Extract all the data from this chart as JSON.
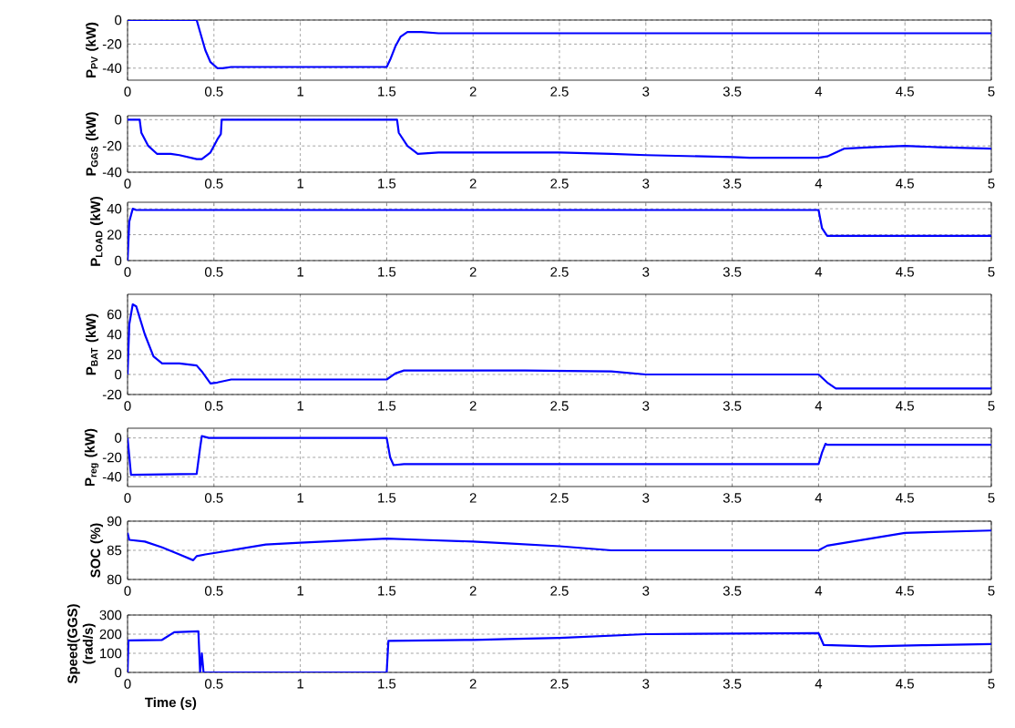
{
  "chart_data": [
    {
      "type": "line",
      "ylabel": "P$_{PV}$ (kW)",
      "x": [
        0,
        0.4,
        0.42,
        0.45,
        0.48,
        0.52,
        0.55,
        0.6,
        1.0,
        1.5,
        1.52,
        1.55,
        1.58,
        1.62,
        1.7,
        1.8,
        2,
        5
      ],
      "series": [
        {
          "color": "#0000ff",
          "values": [
            0,
            0,
            -10,
            -25,
            -35,
            -40,
            -40,
            -39,
            -39,
            -39,
            -33,
            -22,
            -14,
            -10,
            -10,
            -11,
            -11,
            -11
          ]
        }
      ],
      "xlim": [
        0,
        5
      ],
      "xticks": [
        0,
        0.5,
        1,
        1.5,
        2,
        2.5,
        3,
        3.5,
        4,
        4.5,
        5
      ],
      "ylim": [
        -50,
        0
      ],
      "yticks": [
        -40,
        -20,
        0
      ],
      "grid": true,
      "line_style": "solid"
    },
    {
      "type": "line",
      "ylabel": "P$_{GGS}$ (kW)",
      "x": [
        0,
        0.07,
        0.08,
        0.12,
        0.17,
        0.25,
        0.3,
        0.4,
        0.43,
        0.48,
        0.52,
        0.54,
        0.545,
        1.56,
        1.57,
        1.62,
        1.68,
        1.8,
        2.2,
        2.5,
        2.8,
        3,
        3.5,
        3.6,
        4,
        4.05,
        4.15,
        4.3,
        4.5,
        4.7,
        5
      ],
      "series": [
        {
          "color": "#0000ff",
          "values": [
            0,
            0,
            -10,
            -20,
            -26,
            -26,
            -27,
            -30,
            -30,
            -25,
            -15,
            -11,
            0,
            0,
            -10,
            -20,
            -26,
            -25,
            -25,
            -25,
            -26,
            -27,
            -28.5,
            -29,
            -29,
            -28,
            -22,
            -21,
            -20,
            -21,
            -22
          ]
        }
      ],
      "xlim": [
        0,
        5
      ],
      "xticks": [
        0,
        0.5,
        1,
        1.5,
        2,
        2.5,
        3,
        3.5,
        4,
        4.5,
        5
      ],
      "ylim": [
        -40,
        3
      ],
      "yticks": [
        -40,
        -20,
        0
      ],
      "grid": true,
      "line_style": "solid"
    },
    {
      "type": "line",
      "ylabel": "P$_{LOAD}$ (kW)",
      "x": [
        0,
        0.01,
        0.03,
        0.05,
        4,
        4.02,
        4.05,
        5
      ],
      "series": [
        {
          "color": "#0000ff",
          "values": [
            0,
            30,
            40,
            39,
            39,
            25,
            19,
            19
          ]
        }
      ],
      "xlim": [
        0,
        5
      ],
      "xticks": [
        0,
        0.5,
        1,
        1.5,
        2,
        2.5,
        3,
        3.5,
        4,
        4.5,
        5
      ],
      "ylim": [
        0,
        45
      ],
      "yticks": [
        0,
        20,
        40
      ],
      "grid": true,
      "line_style": "solid"
    },
    {
      "type": "line",
      "ylabel": "P$_{BAT}$ (kW)",
      "x": [
        0,
        0.01,
        0.03,
        0.05,
        0.1,
        0.15,
        0.2,
        0.3,
        0.4,
        0.43,
        0.48,
        0.52,
        0.6,
        0.7,
        1.5,
        1.55,
        1.6,
        2.3,
        2.8,
        3,
        4,
        4.05,
        4.1,
        4.5,
        5
      ],
      "series": [
        {
          "color": "#0000ff",
          "values": [
            0,
            50,
            70,
            68,
            40,
            18,
            11,
            11,
            9,
            3,
            -9,
            -8,
            -5,
            -5,
            -5,
            1,
            4,
            4,
            3,
            0,
            0,
            -8,
            -14,
            -14,
            -14
          ]
        }
      ],
      "xlim": [
        0,
        5
      ],
      "xticks": [
        0,
        0.5,
        1,
        1.5,
        2,
        2.5,
        3,
        3.5,
        4,
        4.5,
        5
      ],
      "ylim": [
        -20,
        80
      ],
      "yticks": [
        -20,
        0,
        20,
        40,
        60
      ],
      "grid": true,
      "line_style": "solid"
    },
    {
      "type": "line",
      "ylabel": "P$_{reg}$ (kW)",
      "x": [
        0,
        0.02,
        0.4,
        0.42,
        0.43,
        0.47,
        1.5,
        1.52,
        1.54,
        1.6,
        4,
        4.02,
        4.04,
        4.05,
        5
      ],
      "series": [
        {
          "color": "#0000ff",
          "values": [
            0,
            -38,
            -37,
            -10,
            2,
            0,
            0,
            -20,
            -28,
            -27,
            -27,
            -15,
            -6,
            -7,
            -7
          ]
        }
      ],
      "xlim": [
        0,
        5
      ],
      "xticks": [
        0,
        0.5,
        1,
        1.5,
        2,
        2.5,
        3,
        3.5,
        4,
        4.5,
        5
      ],
      "ylim": [
        -50,
        10
      ],
      "yticks": [
        -40,
        -20,
        0
      ],
      "grid": true,
      "line_style": "solid"
    },
    {
      "type": "line",
      "ylabel": "SOC (%)",
      "x": [
        0,
        0.01,
        0.1,
        0.2,
        0.3,
        0.38,
        0.4,
        0.45,
        0.6,
        0.8,
        1.0,
        1.5,
        1.7,
        2,
        2.2,
        2.5,
        2.8,
        3,
        4,
        4.05,
        4.5,
        5
      ],
      "series": [
        {
          "color": "#0000ff",
          "values": [
            88,
            86.8,
            86.5,
            85.5,
            84.3,
            83.3,
            84,
            84.3,
            85,
            86,
            86.3,
            87,
            86.8,
            86.5,
            86.2,
            85.7,
            85,
            85,
            85,
            85.8,
            88,
            88.4
          ]
        }
      ],
      "xlim": [
        0,
        5
      ],
      "xticks": [
        0,
        0.5,
        1,
        1.5,
        2,
        2.5,
        3,
        3.5,
        4,
        4.5,
        5
      ],
      "ylim": [
        80,
        90
      ],
      "yticks": [
        80,
        85,
        90
      ],
      "grid": true,
      "line_style": "solid"
    },
    {
      "type": "line",
      "ylabel": "Speed(GGS) (rad/s)",
      "xlabel": "Time (s)",
      "x": [
        0,
        0.005,
        0.2,
        0.27,
        0.41,
        0.42,
        0.43,
        0.44,
        1.5,
        1.51,
        2,
        2.2,
        2.5,
        3,
        4,
        4.03,
        4.3,
        4.6,
        5
      ],
      "series": [
        {
          "color": "#0000ff",
          "values": [
            0,
            167,
            170,
            210,
            215,
            0,
            100,
            0,
            0,
            165,
            170,
            174,
            180,
            200,
            205,
            143,
            136,
            142,
            148
          ]
        }
      ],
      "xlim": [
        0,
        5
      ],
      "xticks": [
        0,
        0.5,
        1,
        1.5,
        2,
        2.5,
        3,
        3.5,
        4,
        4.5,
        5
      ],
      "ylim": [
        0,
        300
      ],
      "yticks": [
        0,
        100,
        200,
        300
      ],
      "grid": true,
      "line_style": "solid"
    }
  ]
}
